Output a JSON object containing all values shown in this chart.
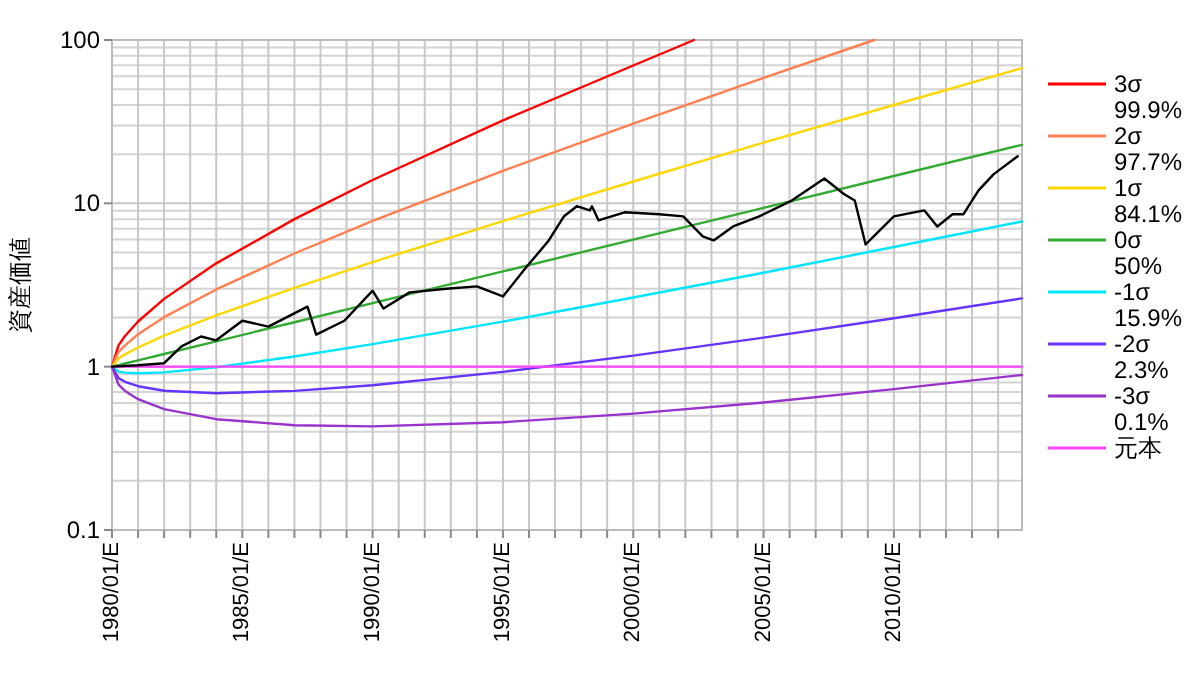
{
  "chart_data": {
    "type": "line",
    "ylabel": "資産価値",
    "log": "y",
    "grid": true,
    "legend": "right",
    "line_style": "solid",
    "xlim": [
      "1980-01",
      "2014-12"
    ],
    "ylim": [
      0.1,
      100
    ],
    "yticks": [
      0.1,
      1,
      10,
      100
    ],
    "xticks": [
      {
        "value": "1980-01",
        "label": "1980/01/E"
      },
      {
        "value": "1981-01",
        "label": null
      },
      {
        "value": "1982-01",
        "label": null
      },
      {
        "value": "1983-01",
        "label": null
      },
      {
        "value": "1984-01",
        "label": null
      },
      {
        "value": "1985-01",
        "label": "1985/01/E"
      },
      {
        "value": "1986-01",
        "label": null
      },
      {
        "value": "1987-01",
        "label": null
      },
      {
        "value": "1988-01",
        "label": null
      },
      {
        "value": "1989-01",
        "label": null
      },
      {
        "value": "1990-01",
        "label": "1990/01/E"
      },
      {
        "value": "1991-01",
        "label": null
      },
      {
        "value": "1992-01",
        "label": null
      },
      {
        "value": "1993-01",
        "label": null
      },
      {
        "value": "1994-01",
        "label": null
      },
      {
        "value": "1995-01",
        "label": "1995/01/E"
      },
      {
        "value": "1996-01",
        "label": null
      },
      {
        "value": "1997-01",
        "label": null
      },
      {
        "value": "1998-01",
        "label": null
      },
      {
        "value": "1999-01",
        "label": null
      },
      {
        "value": "2000-01",
        "label": "2000/01/E"
      },
      {
        "value": "2001-01",
        "label": null
      },
      {
        "value": "2002-01",
        "label": null
      },
      {
        "value": "2003-01",
        "label": null
      },
      {
        "value": "2004-01",
        "label": null
      },
      {
        "value": "2005-01",
        "label": "2005/01/E"
      },
      {
        "value": "2006-01",
        "label": null
      },
      {
        "value": "2007-01",
        "label": null
      },
      {
        "value": "2008-01",
        "label": null
      },
      {
        "value": "2009-01",
        "label": null
      },
      {
        "value": "2010-01",
        "label": "2010/01/E"
      },
      {
        "value": "2011-01",
        "label": null
      },
      {
        "value": "2012-01",
        "label": null
      },
      {
        "value": "2013-01",
        "label": null
      },
      {
        "value": "2014-01",
        "label": null
      }
    ],
    "series": [
      {
        "name": "3σ 99.9%",
        "color": "#ff0000",
        "x": [
          "1980-01",
          "1980-04",
          "1980-07",
          "1981-01",
          "1982-01",
          "1984-01",
          "1987-01",
          "1990-01",
          "1995-01",
          "2000-01",
          "2002-05"
        ],
        "values": [
          1,
          1.35,
          1.54,
          1.89,
          2.6,
          4.29,
          8.0,
          13.9,
          32.2,
          69.8,
          100
        ]
      },
      {
        "name": "2σ 97.7%",
        "color": "#ff7f50",
        "x": [
          "1980-01",
          "1980-04",
          "1980-07",
          "1981-01",
          "1982-01",
          "1984-01",
          "1987-01",
          "1990-01",
          "1995-01",
          "2000-01",
          "2005-01",
          "2009-04"
        ],
        "values": [
          1,
          1.23,
          1.35,
          1.58,
          2.01,
          2.97,
          4.93,
          7.8,
          15.8,
          30.8,
          58.6,
          100
        ]
      },
      {
        "name": "1σ 84.1%",
        "color": "#ffd700",
        "x": [
          "1980-01",
          "1980-04",
          "1980-07",
          "1981-01",
          "1982-01",
          "1984-01",
          "1987-01",
          "1990-01",
          "1995-01",
          "2000-01",
          "2005-01",
          "2010-01",
          "2014-12"
        ],
        "values": [
          1,
          1.12,
          1.19,
          1.31,
          1.55,
          2.06,
          3.04,
          4.37,
          7.79,
          13.6,
          23.5,
          40,
          67.2
        ]
      },
      {
        "name": "0σ 50%",
        "color": "#33aa33",
        "x": [
          "1980-01",
          "1980-04",
          "1980-07",
          "1981-01",
          "1982-01",
          "1984-01",
          "1987-01",
          "1990-01",
          "1995-01",
          "2000-01",
          "2005-01",
          "2010-01",
          "2014-12"
        ],
        "values": [
          1,
          1.023,
          1.046,
          1.094,
          1.196,
          1.43,
          1.87,
          2.45,
          3.83,
          6.0,
          9.39,
          14.7,
          22.8
        ]
      },
      {
        "name": "-1σ 15.9%",
        "color": "#00e5ff",
        "x": [
          "1980-01",
          "1980-04",
          "1980-07",
          "1981-01",
          "1982-01",
          "1984-01",
          "1987-01",
          "1990-01",
          "1995-01",
          "2000-01",
          "2005-01",
          "2010-01",
          "2014-12"
        ],
        "values": [
          1,
          0.933,
          0.919,
          0.911,
          0.923,
          0.992,
          1.154,
          1.373,
          1.887,
          2.65,
          3.76,
          5.4,
          7.74
        ]
      },
      {
        "name": "-2σ 2.3%",
        "color": "#6633ff",
        "x": [
          "1980-01",
          "1980-04",
          "1980-07",
          "1981-01",
          "1982-01",
          "1984-01",
          "1987-01",
          "1990-01",
          "1995-01",
          "2000-01",
          "2005-01",
          "2010-01",
          "2014-12"
        ],
        "values": [
          1,
          0.851,
          0.808,
          0.759,
          0.712,
          0.688,
          0.711,
          0.77,
          0.929,
          1.169,
          1.507,
          1.98,
          2.62
        ]
      },
      {
        "name": "-3σ 0.1%",
        "color": "#9933cc",
        "x": [
          "1980-01",
          "1980-04",
          "1980-07",
          "1981-01",
          "1982-01",
          "1984-01",
          "1987-01",
          "1990-01",
          "1995-01",
          "2000-01",
          "2005-01",
          "2010-01",
          "2014-12"
        ],
        "values": [
          1,
          0.777,
          0.71,
          0.632,
          0.55,
          0.477,
          0.438,
          0.431,
          0.457,
          0.516,
          0.604,
          0.728,
          0.89
        ]
      },
      {
        "name": "元本",
        "color": "#ff44ff",
        "x": [
          "1980-01",
          "2014-12"
        ],
        "values": [
          1,
          1
        ]
      },
      {
        "color": "#000000",
        "x": [
          "1980-01",
          "1981-01",
          "1982-01",
          "1982-09",
          "1983-06",
          "1984-01",
          "1985-01",
          "1986-01",
          "1987-07",
          "1987-11",
          "1988-12",
          "1990-01",
          "1990-06",
          "1991-06",
          "1992-11",
          "1994-01",
          "1995-01",
          "1995-12",
          "1996-10",
          "1997-05",
          "1997-11",
          "1998-05",
          "1998-06",
          "1998-09",
          "1999-09",
          "2001-01",
          "2001-12",
          "2002-09",
          "2003-02",
          "2003-11",
          "2004-11",
          "2006-02",
          "2007-05",
          "2008-02",
          "2008-07",
          "2008-12",
          "2010-01",
          "2011-03",
          "2011-09",
          "2012-04",
          "2012-09",
          "2013-04",
          "2013-11",
          "2014-10"
        ],
        "values": [
          1,
          1.02,
          1.05,
          1.33,
          1.53,
          1.45,
          1.91,
          1.76,
          2.33,
          1.57,
          1.91,
          2.92,
          2.27,
          2.85,
          3.0,
          3.1,
          2.69,
          4.1,
          5.9,
          8.3,
          9.6,
          9.06,
          9.59,
          7.87,
          8.81,
          8.57,
          8.32,
          6.28,
          5.93,
          7.22,
          8.32,
          10.4,
          14.2,
          11.4,
          10.4,
          5.6,
          8.32,
          9.06,
          7.22,
          8.57,
          8.57,
          12.0,
          15.1,
          19.4
        ]
      }
    ]
  }
}
